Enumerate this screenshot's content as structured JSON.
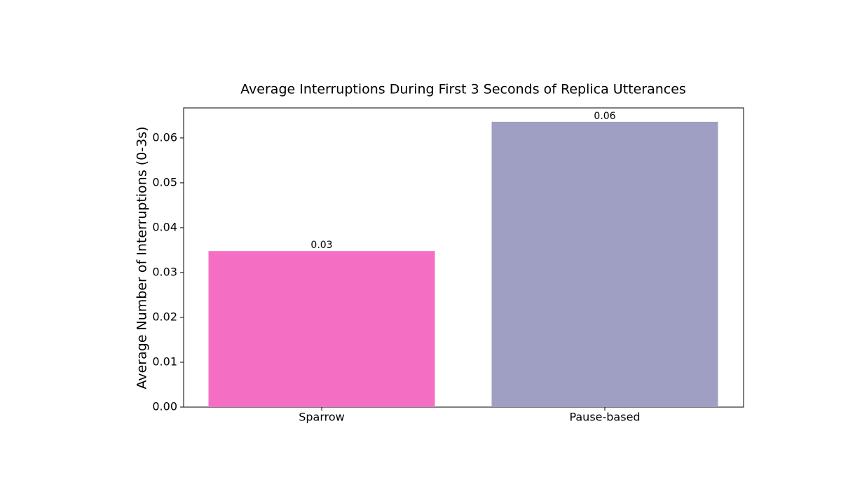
{
  "chart_data": {
    "type": "bar",
    "title": "Average Interruptions During First 3 Seconds of Replica Utterances",
    "y_label": "Average Number of Interruptions (0-3s)",
    "categories": [
      "Sparrow",
      "Pause-based"
    ],
    "values": [
      0.0348,
      0.0636
    ],
    "value_labels": [
      "0.03",
      "0.06"
    ],
    "colors": [
      "#f46fc4",
      "#9f9fc3"
    ],
    "ylim": [
      0,
      0.0667
    ],
    "yticks": [
      {
        "value": 0,
        "label": "0.00"
      },
      0.01,
      0.02,
      0.03,
      0.04,
      0.05,
      0.06
    ],
    "grid": false
  }
}
